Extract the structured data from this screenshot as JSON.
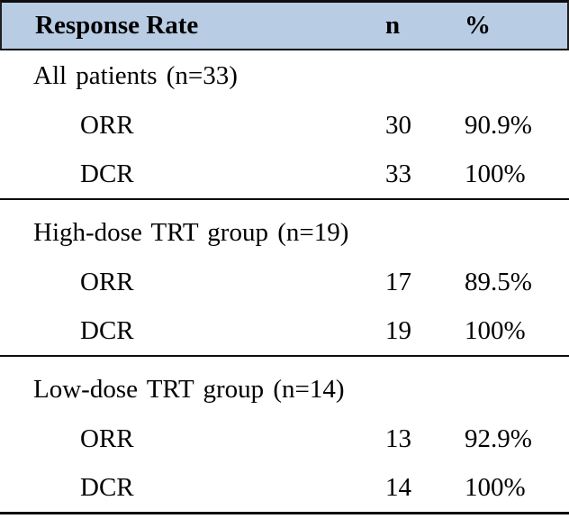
{
  "table": {
    "header": {
      "col1": "Response Rate",
      "col2": "n",
      "col3": "%"
    },
    "sections": [
      {
        "title": "All patients (n=33)",
        "rows": [
          {
            "label": "ORR",
            "n": "30",
            "pct": "90.9%"
          },
          {
            "label": "DCR",
            "n": "33",
            "pct": "100%"
          }
        ]
      },
      {
        "title": "High-dose TRT group (n=19)",
        "rows": [
          {
            "label": "ORR",
            "n": "17",
            "pct": "89.5%"
          },
          {
            "label": "DCR",
            "n": "19",
            "pct": "100%"
          }
        ]
      },
      {
        "title": "Low-dose TRT group (n=14)",
        "rows": [
          {
            "label": "ORR",
            "n": "13",
            "pct": "92.9%"
          },
          {
            "label": "DCR",
            "n": "14",
            "pct": "100%"
          }
        ]
      }
    ]
  },
  "colors": {
    "header_background": "#b8cce4",
    "border": "#0d0d0d",
    "text": "#000000"
  }
}
